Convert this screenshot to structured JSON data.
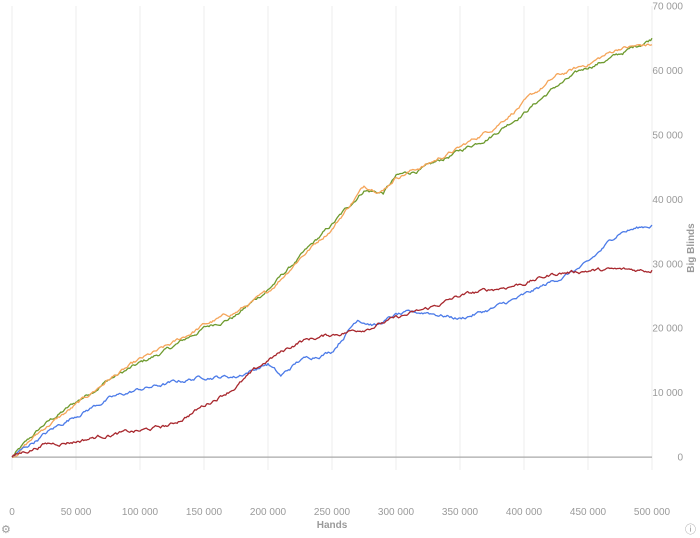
{
  "chart_data": {
    "type": "line",
    "xlabel": "Hands",
    "ylabel": "Big Blinds",
    "xlim": [
      0,
      500000
    ],
    "ylim": [
      -2000,
      70000
    ],
    "x_ticks": [
      0,
      50000,
      100000,
      150000,
      200000,
      250000,
      300000,
      350000,
      400000,
      450000,
      500000
    ],
    "x_tick_labels": [
      "0",
      "50 000",
      "100 000",
      "150 000",
      "200 000",
      "250 000",
      "300 000",
      "350 000",
      "400 000",
      "450 000",
      "500 000"
    ],
    "y_ticks": [
      0,
      10000,
      20000,
      30000,
      40000,
      50000,
      60000,
      70000
    ],
    "y_tick_labels": [
      "0",
      "10 000",
      "20 000",
      "30 000",
      "40 000",
      "50 000",
      "60 000",
      "70 000"
    ],
    "y_axis_side": "right",
    "grid": "vertical",
    "series": [
      {
        "color": "#6d9a2e",
        "x": [
          0,
          25000,
          50000,
          75000,
          100000,
          125000,
          150000,
          175000,
          200000,
          225000,
          250000,
          275000,
          290000,
          300000,
          325000,
          350000,
          375000,
          400000,
          425000,
          450000,
          475000,
          500000
        ],
        "y": [
          0,
          5000,
          8500,
          12000,
          14500,
          17000,
          20000,
          22000,
          26000,
          31000,
          36000,
          41500,
          41000,
          43500,
          45000,
          47500,
          50000,
          53500,
          57500,
          60500,
          62500,
          65000
        ]
      },
      {
        "color": "#f5a55a",
        "x": [
          0,
          25000,
          50000,
          75000,
          100000,
          125000,
          150000,
          175000,
          200000,
          225000,
          250000,
          275000,
          290000,
          300000,
          325000,
          350000,
          375000,
          400000,
          425000,
          450000,
          475000,
          500000
        ],
        "y": [
          0,
          4500,
          8000,
          12000,
          15000,
          17500,
          20500,
          22500,
          25500,
          31000,
          35500,
          42000,
          41500,
          43500,
          45500,
          48000,
          51000,
          55000,
          59000,
          61000,
          63500,
          64000
        ]
      },
      {
        "color": "#4c7be8",
        "x": [
          0,
          25000,
          50000,
          75000,
          100000,
          125000,
          150000,
          175000,
          200000,
          210000,
          225000,
          250000,
          270000,
          285000,
          300000,
          325000,
          350000,
          375000,
          400000,
          425000,
          450000,
          475000,
          500000
        ],
        "y": [
          0,
          3500,
          6500,
          9000,
          10500,
          11500,
          12500,
          12500,
          14500,
          12500,
          15000,
          16500,
          21500,
          20500,
          22000,
          22500,
          21500,
          23000,
          25000,
          27500,
          30000,
          35000,
          36000
        ]
      },
      {
        "color": "#a8282e",
        "x": [
          0,
          25000,
          50000,
          75000,
          100000,
          125000,
          150000,
          175000,
          200000,
          225000,
          250000,
          275000,
          300000,
          325000,
          350000,
          375000,
          400000,
          425000,
          450000,
          475000,
          500000
        ],
        "y": [
          0,
          2000,
          2500,
          3500,
          4000,
          5000,
          8000,
          11000,
          15000,
          18000,
          19000,
          20000,
          21500,
          23000,
          25000,
          26000,
          27000,
          28500,
          29000,
          29000,
          29000
        ]
      }
    ]
  },
  "icons": {
    "settings": "gear-icon",
    "info": "info-icon"
  }
}
